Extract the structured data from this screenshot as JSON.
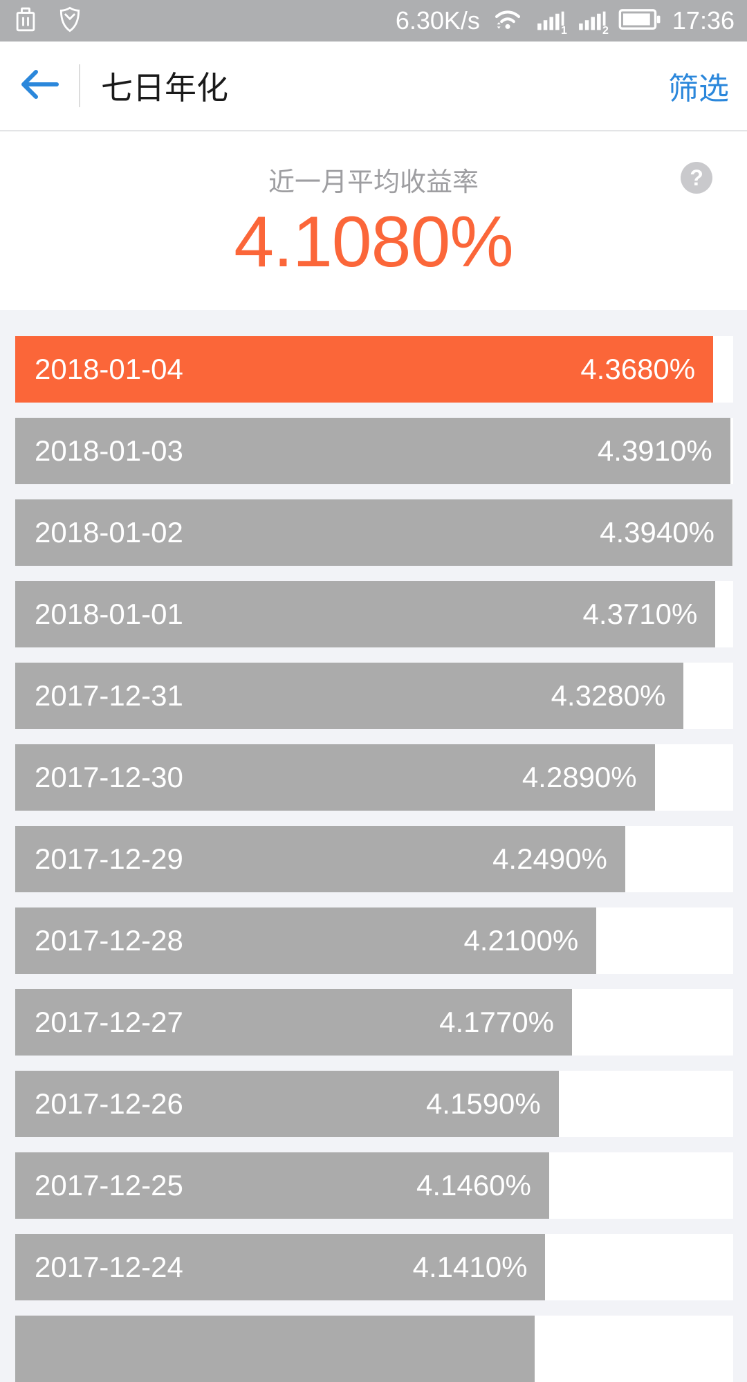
{
  "status_bar": {
    "network_speed": "6.30K/s",
    "time": "17:36",
    "sim1_label": "1",
    "sim2_label": "2"
  },
  "header": {
    "title": "七日年化",
    "filter_label": "筛选"
  },
  "summary": {
    "subtitle": "近一月平均收益率",
    "average_value": "4.1080%",
    "help_glyph": "?"
  },
  "colors": {
    "accent_orange": "#FB6639",
    "bar_gray": "#ABABAB",
    "link_blue": "#2B87DB",
    "page_bg": "#F2F3F7",
    "status_bar_bg": "#AEAFB1"
  },
  "chart_data": {
    "type": "bar",
    "orientation": "horizontal",
    "title": "七日年化",
    "subtitle": "近一月平均收益率",
    "average_value": "4.1080%",
    "axis_range": [
      3.424,
      4.395
    ],
    "grid": false,
    "legend": false,
    "highlight_index": 0,
    "categories": [
      "2018-01-04",
      "2018-01-03",
      "2018-01-02",
      "2018-01-01",
      "2017-12-31",
      "2017-12-30",
      "2017-12-29",
      "2017-12-28",
      "2017-12-27",
      "2017-12-26",
      "2017-12-25",
      "2017-12-24"
    ],
    "values": [
      4.368,
      4.391,
      4.394,
      4.371,
      4.328,
      4.289,
      4.249,
      4.21,
      4.177,
      4.159,
      4.146,
      4.141
    ],
    "rows": [
      {
        "date": "2018-01-04",
        "value": 4.368,
        "label": "4.3680%"
      },
      {
        "date": "2018-01-03",
        "value": 4.391,
        "label": "4.3910%"
      },
      {
        "date": "2018-01-02",
        "value": 4.394,
        "label": "4.3940%"
      },
      {
        "date": "2018-01-01",
        "value": 4.371,
        "label": "4.3710%"
      },
      {
        "date": "2017-12-31",
        "value": 4.328,
        "label": "4.3280%"
      },
      {
        "date": "2017-12-30",
        "value": 4.289,
        "label": "4.2890%"
      },
      {
        "date": "2017-12-29",
        "value": 4.249,
        "label": "4.2490%"
      },
      {
        "date": "2017-12-28",
        "value": 4.21,
        "label": "4.2100%"
      },
      {
        "date": "2017-12-27",
        "value": 4.177,
        "label": "4.1770%"
      },
      {
        "date": "2017-12-26",
        "value": 4.159,
        "label": "4.1590%"
      },
      {
        "date": "2017-12-25",
        "value": 4.146,
        "label": "4.1460%"
      },
      {
        "date": "2017-12-24",
        "value": 4.141,
        "label": "4.1410%"
      }
    ],
    "partial_next_row": {
      "visible_fraction_width": 0.7235
    }
  }
}
